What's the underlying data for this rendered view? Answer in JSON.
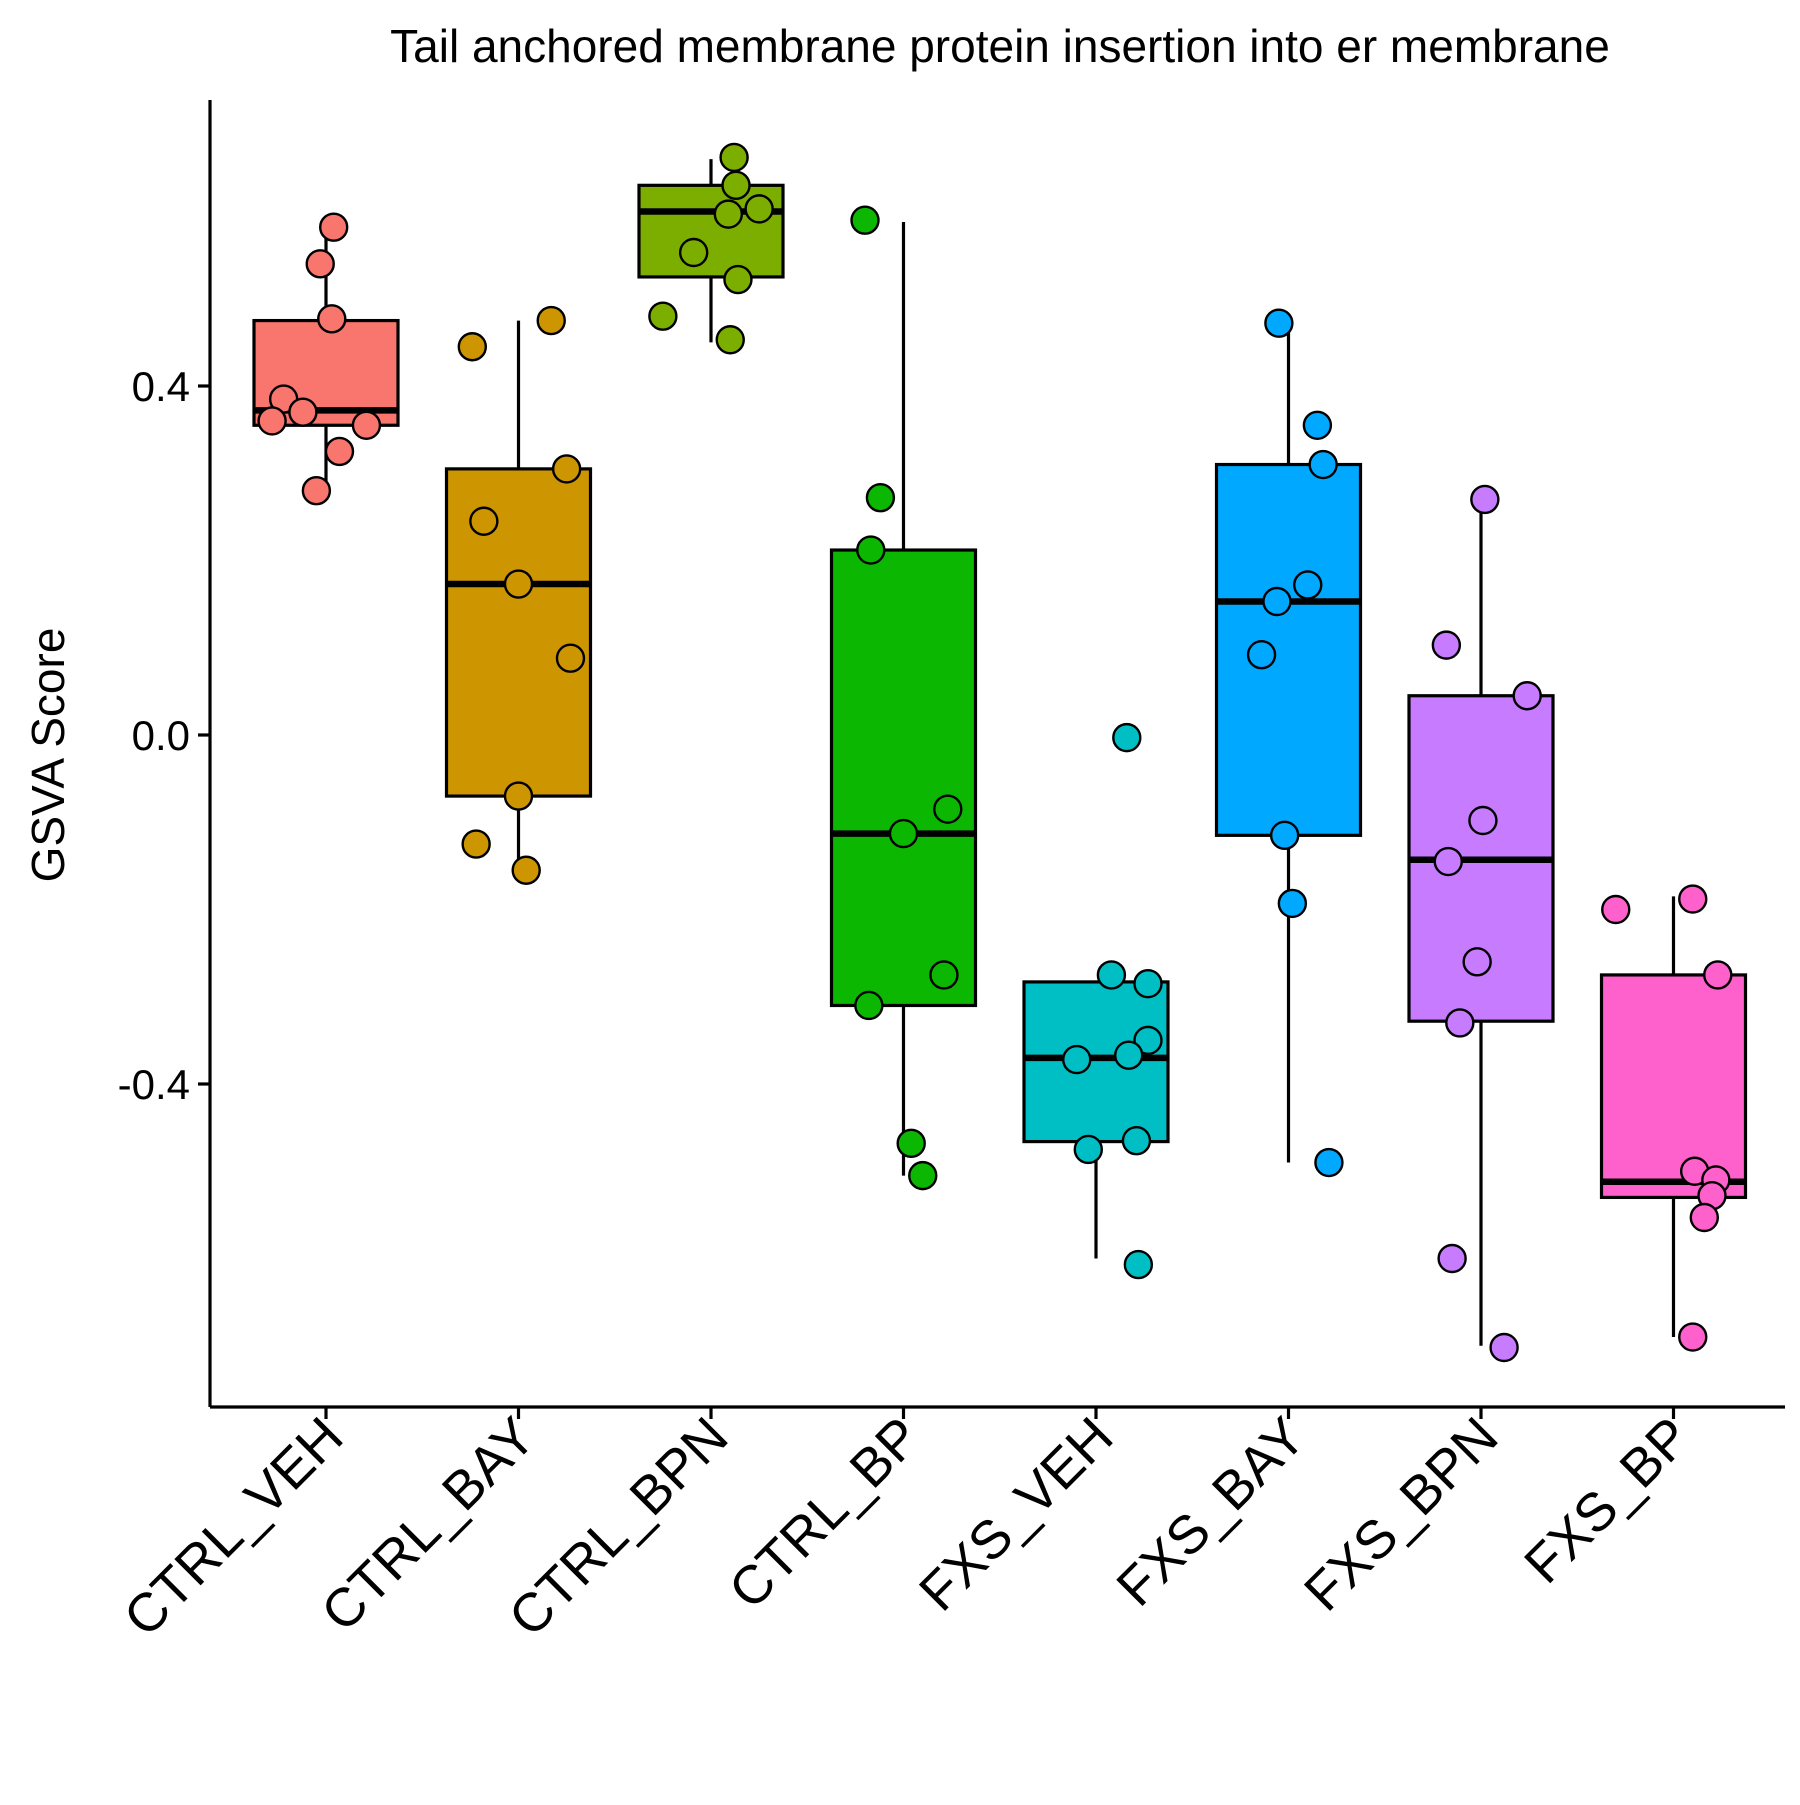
{
  "chart_data": {
    "type": "box",
    "title": "Tail anchored membrane protein insertion into er membrane",
    "xlabel": "",
    "ylabel": "GSVA Score",
    "ylim": [
      -0.77,
      0.72
    ],
    "yticks": [
      -0.4,
      0.0,
      0.4
    ],
    "ytick_labels": [
      "-0.4",
      "0.0",
      "0.4"
    ],
    "grid": false,
    "legend": "none",
    "categories": [
      "CTRL_VEH",
      "CTRL_BAY",
      "CTRL_BPN",
      "CTRL_BP",
      "FXS_VEH",
      "FXS_BAY",
      "FXS_BPN",
      "FXS_BP"
    ],
    "groups": [
      {
        "name": "CTRL_VEH",
        "color": "#F8766D",
        "box": {
          "lower_whisker": 0.28,
          "q1": 0.355,
          "median": 0.372,
          "q3": 0.475,
          "upper_whisker": 0.585
        },
        "points": [
          {
            "jitter": 0.04,
            "y": 0.582
          },
          {
            "jitter": -0.03,
            "y": 0.54
          },
          {
            "jitter": 0.03,
            "y": 0.477
          },
          {
            "jitter": -0.22,
            "y": 0.385
          },
          {
            "jitter": -0.12,
            "y": 0.37
          },
          {
            "jitter": -0.28,
            "y": 0.36
          },
          {
            "jitter": 0.21,
            "y": 0.355
          },
          {
            "jitter": 0.07,
            "y": 0.325
          },
          {
            "jitter": -0.05,
            "y": 0.28
          }
        ]
      },
      {
        "name": "CTRL_BAY",
        "color": "#CD9600",
        "box": {
          "lower_whisker": -0.16,
          "q1": -0.07,
          "median": 0.173,
          "q3": 0.305,
          "upper_whisker": 0.475
        },
        "points": [
          {
            "jitter": 0.17,
            "y": 0.475
          },
          {
            "jitter": -0.24,
            "y": 0.445
          },
          {
            "jitter": 0.25,
            "y": 0.305
          },
          {
            "jitter": -0.18,
            "y": 0.245
          },
          {
            "jitter": 0.0,
            "y": 0.173
          },
          {
            "jitter": 0.27,
            "y": 0.088
          },
          {
            "jitter": 0.0,
            "y": -0.07
          },
          {
            "jitter": -0.22,
            "y": -0.125
          },
          {
            "jitter": 0.04,
            "y": -0.155
          }
        ]
      },
      {
        "name": "CTRL_BPN",
        "color": "#7CAE00",
        "box": {
          "lower_whisker": 0.45,
          "q1": 0.525,
          "median": 0.6,
          "q3": 0.63,
          "upper_whisker": 0.66
        },
        "points": [
          {
            "jitter": 0.12,
            "y": 0.662
          },
          {
            "jitter": 0.13,
            "y": 0.63
          },
          {
            "jitter": 0.25,
            "y": 0.603
          },
          {
            "jitter": 0.09,
            "y": 0.597
          },
          {
            "jitter": -0.09,
            "y": 0.553
          },
          {
            "jitter": 0.14,
            "y": 0.522
          },
          {
            "jitter": -0.25,
            "y": 0.48
          },
          {
            "jitter": 0.1,
            "y": 0.453
          }
        ]
      },
      {
        "name": "CTRL_BP",
        "color": "#0CB702",
        "box": {
          "lower_whisker": -0.505,
          "q1": -0.31,
          "median": -0.113,
          "q3": 0.212,
          "upper_whisker": 0.588
        },
        "points": [
          {
            "jitter": -0.2,
            "y": 0.59
          },
          {
            "jitter": -0.12,
            "y": 0.272
          },
          {
            "jitter": -0.17,
            "y": 0.212
          },
          {
            "jitter": 0.23,
            "y": -0.085
          },
          {
            "jitter": 0.0,
            "y": -0.113
          },
          {
            "jitter": 0.21,
            "y": -0.275
          },
          {
            "jitter": -0.18,
            "y": -0.31
          },
          {
            "jitter": 0.04,
            "y": -0.468
          },
          {
            "jitter": 0.1,
            "y": -0.505
          }
        ]
      },
      {
        "name": "FXS_VEH",
        "color": "#00BFC4",
        "box": {
          "lower_whisker": -0.6,
          "q1": -0.466,
          "median": -0.37,
          "q3": -0.283,
          "upper_whisker": -0.283
        },
        "points": [
          {
            "jitter": 0.16,
            "y": -0.003
          },
          {
            "jitter": 0.08,
            "y": -0.275
          },
          {
            "jitter": 0.27,
            "y": -0.285
          },
          {
            "jitter": 0.27,
            "y": -0.35
          },
          {
            "jitter": -0.1,
            "y": -0.372
          },
          {
            "jitter": 0.17,
            "y": -0.367
          },
          {
            "jitter": 0.21,
            "y": -0.465
          },
          {
            "jitter": -0.04,
            "y": -0.475
          },
          {
            "jitter": 0.22,
            "y": -0.607
          }
        ]
      },
      {
        "name": "FXS_BAY",
        "color": "#00A9FF",
        "box": {
          "lower_whisker": -0.49,
          "q1": -0.115,
          "median": 0.153,
          "q3": 0.31,
          "upper_whisker": 0.47
        },
        "points": [
          {
            "jitter": -0.05,
            "y": 0.472
          },
          {
            "jitter": 0.15,
            "y": 0.355
          },
          {
            "jitter": 0.18,
            "y": 0.31
          },
          {
            "jitter": 0.1,
            "y": 0.172
          },
          {
            "jitter": -0.06,
            "y": 0.153
          },
          {
            "jitter": -0.14,
            "y": 0.092
          },
          {
            "jitter": -0.02,
            "y": -0.115
          },
          {
            "jitter": 0.02,
            "y": -0.193
          },
          {
            "jitter": 0.21,
            "y": -0.49
          }
        ]
      },
      {
        "name": "FXS_BPN",
        "color": "#C77CFF",
        "box": {
          "lower_whisker": -0.7,
          "q1": -0.328,
          "median": -0.143,
          "q3": 0.045,
          "upper_whisker": 0.27
        },
        "points": [
          {
            "jitter": 0.02,
            "y": 0.27
          },
          {
            "jitter": -0.18,
            "y": 0.103
          },
          {
            "jitter": 0.24,
            "y": 0.045
          },
          {
            "jitter": 0.01,
            "y": -0.098
          },
          {
            "jitter": -0.17,
            "y": -0.145
          },
          {
            "jitter": -0.02,
            "y": -0.26
          },
          {
            "jitter": -0.11,
            "y": -0.33
          },
          {
            "jitter": -0.15,
            "y": -0.6
          },
          {
            "jitter": 0.12,
            "y": -0.702
          }
        ]
      },
      {
        "name": "FXS_BP",
        "color": "#FF61CC",
        "box": {
          "lower_whisker": -0.69,
          "q1": -0.53,
          "median": -0.512,
          "q3": -0.275,
          "upper_whisker": -0.185
        },
        "points": [
          {
            "jitter": -0.3,
            "y": -0.2
          },
          {
            "jitter": 0.1,
            "y": -0.188
          },
          {
            "jitter": 0.23,
            "y": -0.275
          },
          {
            "jitter": 0.11,
            "y": -0.5
          },
          {
            "jitter": 0.22,
            "y": -0.51
          },
          {
            "jitter": 0.2,
            "y": -0.528
          },
          {
            "jitter": 0.16,
            "y": -0.553
          },
          {
            "jitter": 0.1,
            "y": -0.69
          }
        ]
      }
    ]
  }
}
